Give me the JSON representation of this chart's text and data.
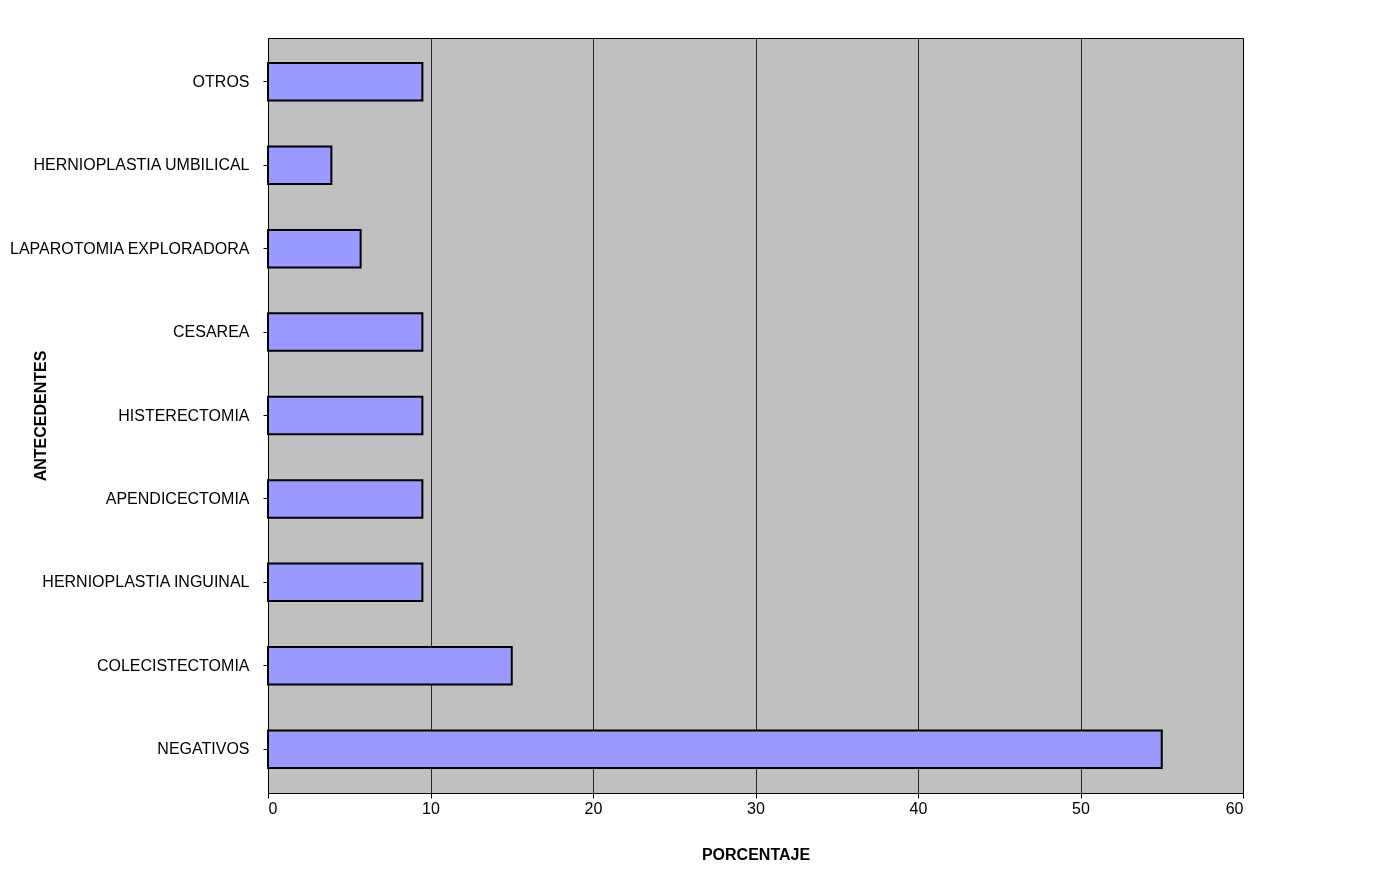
{
  "chart_data": {
    "type": "bar",
    "orientation": "horizontal",
    "xlabel": "PORCENTAJE",
    "ylabel": "ANTECEDENTES",
    "categories": [
      "OTROS",
      "HERNIOPLASTIA UMBILICAL",
      "LAPAROTOMIA EXPLORADORA",
      "CESAREA",
      "HISTERECTOMIA",
      "APENDICECTOMIA",
      "HERNIOPLASTIA INGUINAL",
      "COLECISTECTOMIA",
      "NEGATIVOS"
    ],
    "values": [
      9.5,
      3.9,
      5.7,
      9.5,
      9.5,
      9.5,
      9.5,
      15,
      55
    ],
    "color": "#9999ff",
    "xlim": [
      0,
      60
    ],
    "xticks": [
      0,
      10,
      20,
      30,
      40,
      50,
      60
    ],
    "grid": "x"
  }
}
